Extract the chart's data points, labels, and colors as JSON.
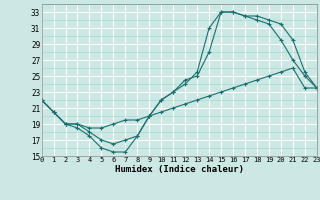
{
  "xlabel": "Humidex (Indice chaleur)",
  "bg_color": "#cce8e4",
  "line_color": "#1a6e6e",
  "grid_major_color": "#ffffff",
  "grid_minor_color": "#aad8d2",
  "xlim": [
    0,
    23
  ],
  "ylim": [
    15,
    34
  ],
  "yticks": [
    15,
    17,
    19,
    21,
    23,
    25,
    27,
    29,
    31,
    33
  ],
  "xticks": [
    0,
    1,
    2,
    3,
    4,
    5,
    6,
    7,
    8,
    9,
    10,
    11,
    12,
    13,
    14,
    15,
    16,
    17,
    18,
    19,
    20,
    21,
    22,
    23
  ],
  "line1_x": [
    0,
    1,
    2,
    3,
    4,
    5,
    6,
    7,
    8,
    9,
    10,
    11,
    12,
    13,
    14,
    15,
    16,
    17,
    18,
    19,
    20,
    21,
    22,
    23
  ],
  "line1_y": [
    22,
    20.5,
    19,
    18.5,
    17.5,
    16,
    15.5,
    15.5,
    17.5,
    20,
    22,
    23,
    24,
    25.5,
    31,
    33,
    33,
    32.5,
    32.5,
    32,
    31.5,
    29.5,
    25.5,
    23.5
  ],
  "line2_x": [
    0,
    1,
    2,
    3,
    4,
    5,
    6,
    7,
    8,
    9,
    10,
    11,
    12,
    13,
    14,
    15,
    16,
    17,
    18,
    19,
    20,
    21,
    22,
    23
  ],
  "line2_y": [
    22,
    20.5,
    19,
    19,
    18,
    17,
    16.5,
    17,
    17.5,
    20,
    22,
    23,
    24.5,
    25,
    28,
    33,
    33,
    32.5,
    32,
    31.5,
    29.5,
    27,
    25,
    23.5
  ],
  "line3_x": [
    0,
    1,
    2,
    3,
    4,
    5,
    6,
    7,
    8,
    9,
    10,
    11,
    12,
    13,
    14,
    15,
    16,
    17,
    18,
    19,
    20,
    21,
    22,
    23
  ],
  "line3_y": [
    22,
    20.5,
    19,
    19,
    18.5,
    18.5,
    19,
    19.5,
    19.5,
    20,
    20.5,
    21,
    21.5,
    22,
    22.5,
    23,
    23.5,
    24,
    24.5,
    25,
    25.5,
    26,
    23.5,
    23.5
  ]
}
